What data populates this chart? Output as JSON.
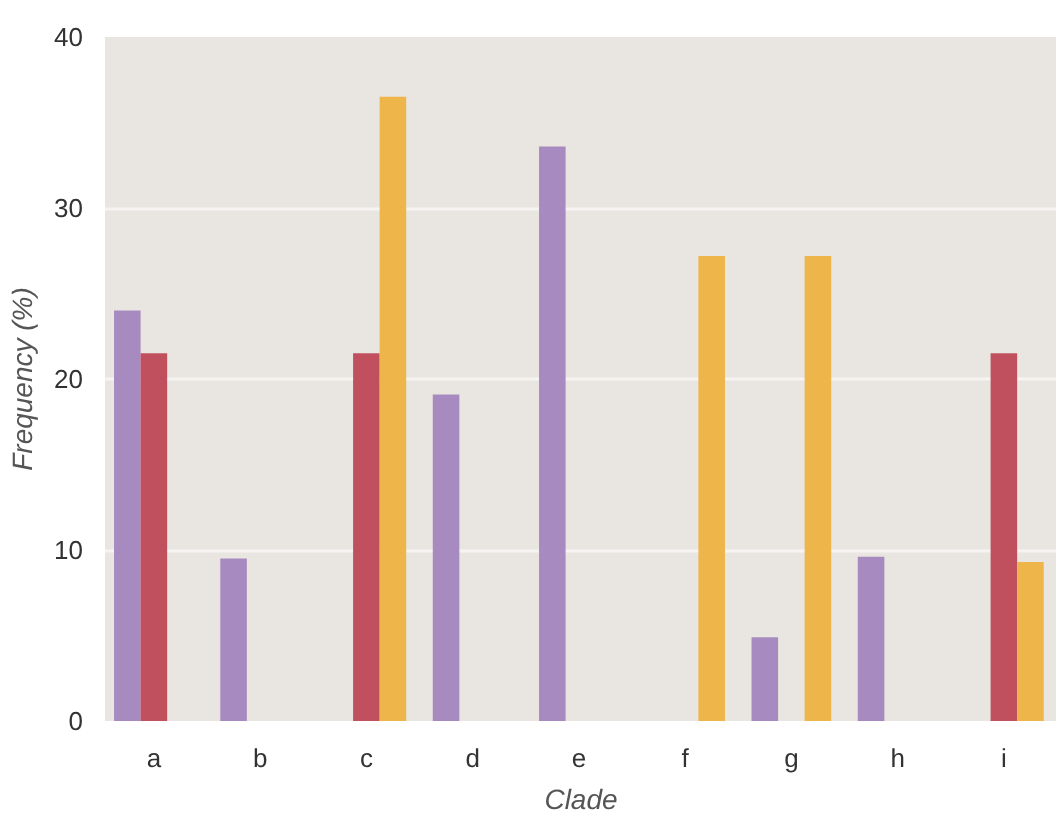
{
  "chart_data": {
    "type": "bar",
    "xlabel": "Clade",
    "ylabel": "Frequency (%)",
    "categories": [
      "a",
      "b",
      "c",
      "d",
      "e",
      "f",
      "g",
      "h",
      "i"
    ],
    "series": [
      {
        "color": "#a78bc0",
        "values": [
          24,
          9.5,
          null,
          19.1,
          33.6,
          null,
          4.9,
          9.6,
          null
        ]
      },
      {
        "color": "#c0505e",
        "values": [
          21.5,
          null,
          21.5,
          null,
          null,
          null,
          null,
          null,
          21.5
        ]
      },
      {
        "color": "#edb54a",
        "values": [
          null,
          null,
          36.5,
          null,
          null,
          27.2,
          27.2,
          null,
          9.3
        ]
      }
    ],
    "ylim": [
      0,
      40
    ],
    "yticks": [
      0,
      10,
      20,
      30,
      40
    ],
    "grid": "y"
  }
}
